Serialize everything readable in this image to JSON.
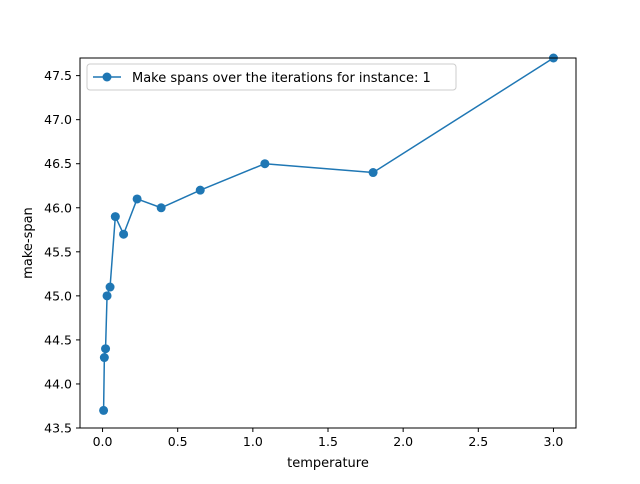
{
  "chart_data": {
    "type": "line",
    "title": "",
    "xlabel": "temperature",
    "ylabel": "make-span",
    "xlim": [
      -0.15,
      3.15
    ],
    "ylim": [
      43.5,
      47.7
    ],
    "xticks": [
      0.0,
      0.5,
      1.0,
      1.5,
      2.0,
      2.5,
      3.0
    ],
    "xtick_labels": [
      "0.0",
      "0.5",
      "1.0",
      "1.5",
      "2.0",
      "2.5",
      "3.0"
    ],
    "yticks": [
      43.5,
      44.0,
      44.5,
      45.0,
      45.5,
      46.0,
      46.5,
      47.0,
      47.5
    ],
    "ytick_labels": [
      "43.5",
      "44.0",
      "44.5",
      "45.0",
      "45.5",
      "46.0",
      "46.5",
      "47.0",
      "47.5"
    ],
    "grid": false,
    "legend_position": "top-left",
    "series": [
      {
        "name": "Make spans over the iterations for instance: 1",
        "color": "#1f77b4",
        "marker": "circle",
        "x": [
          0.007,
          0.012,
          0.02,
          0.03,
          0.05,
          0.085,
          0.14,
          0.23,
          0.39,
          0.65,
          1.08,
          1.8,
          3.0
        ],
        "y": [
          43.7,
          44.3,
          44.4,
          45.0,
          45.1,
          45.9,
          45.7,
          46.1,
          46.0,
          46.2,
          46.5,
          46.4,
          47.7
        ]
      }
    ]
  }
}
